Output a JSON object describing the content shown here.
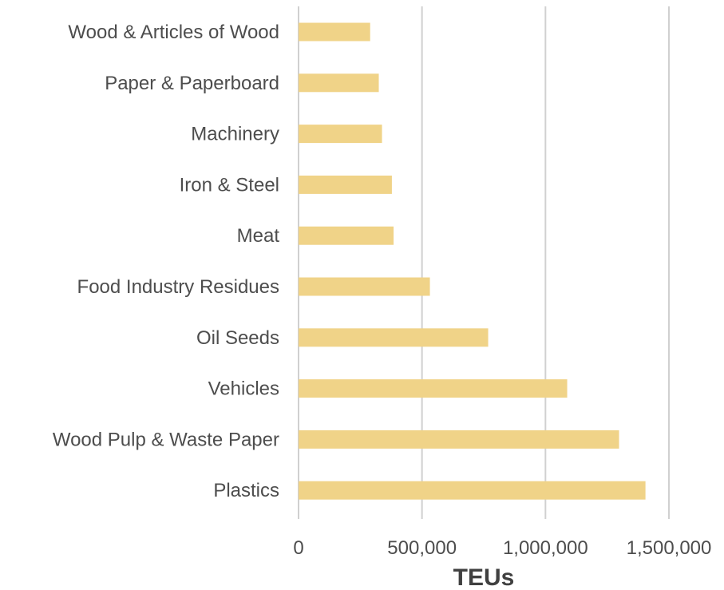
{
  "chart_data": {
    "type": "bar",
    "orientation": "horizontal",
    "categories": [
      "Wood & Articles of Wood",
      "Paper & Paperboard",
      "Machinery",
      "Iron & Steel",
      "Meat",
      "Food Industry Residues",
      "Oil Seeds",
      "Vehicles",
      "Wood Pulp & Waste Paper",
      "Plastics"
    ],
    "values": [
      290000,
      325000,
      338000,
      378000,
      385000,
      532000,
      768000,
      1088000,
      1298000,
      1405000
    ],
    "xlabel": "TEUs",
    "ylabel": "",
    "xlim": [
      0,
      1500000
    ],
    "xticks": [
      0,
      500000,
      1000000,
      1500000
    ],
    "xtick_labels": [
      "0",
      "500,000",
      "1,000,000",
      "1,500,000"
    ],
    "grid": true,
    "bar_color": "#f0d388"
  }
}
